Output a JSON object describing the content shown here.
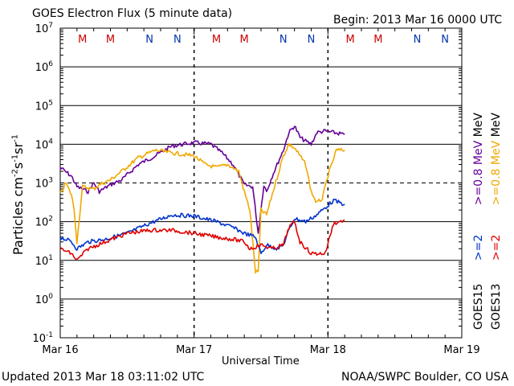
{
  "header": {
    "title": "GOES Electron Flux (5 minute data)",
    "begin": "Begin: 2013 Mar 16 0000 UTC"
  },
  "footer": {
    "updated": "Updated 2013 Mar 18 03:11:02 UTC",
    "credit": "NOAA/SWPC Boulder, CO USA"
  },
  "y_axis": {
    "label_main": "Particles cm",
    "sup1": "-2",
    "seg_s": "s",
    "sup2": "-1",
    "seg_sr": "sr",
    "sup3": "-1"
  },
  "x_axis": {
    "label": "Universal Time"
  },
  "legend": {
    "goes15": {
      "sat": "GOES15",
      "high": ">=0.8 MeV",
      "low": ">=2"
    },
    "goes13": {
      "sat": "GOES13",
      "high": ">=0.8 MeV",
      "low": ">=2"
    },
    "mev": "MeV"
  },
  "colors": {
    "goes15_high": "#660099",
    "goes15_low": "#0033cc",
    "goes13_high": "#f0a800",
    "goes13_low": "#e00000",
    "M_marker": "#cc0000",
    "N_marker": "#0033aa"
  },
  "chart_data": {
    "type": "line",
    "title": "GOES Electron Flux (5 minute data)",
    "xlabel": "Universal Time",
    "ylabel": "Particles cm-2 s-1 sr-1",
    "y_scale": "log",
    "ylim": [
      0.1,
      10000000
    ],
    "xlim": [
      "2013-03-16",
      "2013-03-19"
    ],
    "x_ticks": [
      "Mar 16",
      "Mar 17",
      "Mar 18",
      "Mar 19"
    ],
    "y_ticks": [
      "10^7",
      "10^6",
      "10^5",
      "10^4",
      "10^3",
      "10^2",
      "10^1",
      "10^0",
      "10^-1"
    ],
    "markers": [
      {
        "label": "M",
        "time": "2013-03-16 04:00"
      },
      {
        "label": "M",
        "time": "2013-03-16 09:00"
      },
      {
        "label": "N",
        "time": "2013-03-16 16:00"
      },
      {
        "label": "N",
        "time": "2013-03-16 21:00"
      },
      {
        "label": "M",
        "time": "2013-03-17 04:00"
      },
      {
        "label": "M",
        "time": "2013-03-17 09:00"
      },
      {
        "label": "N",
        "time": "2013-03-17 16:00"
      },
      {
        "label": "N",
        "time": "2013-03-17 21:00"
      },
      {
        "label": "M",
        "time": "2013-03-18 04:00"
      },
      {
        "label": "M",
        "time": "2013-03-18 09:00"
      },
      {
        "label": "N",
        "time": "2013-03-18 16:00"
      },
      {
        "label": "N",
        "time": "2013-03-18 21:00"
      }
    ],
    "series": [
      {
        "name": "GOES15 >=0.8 MeV",
        "color": "#660099",
        "x": [
          "03-16 00:00",
          "03-16 02:00",
          "03-16 03:00",
          "03-16 05:00",
          "03-16 06:00",
          "03-16 07:00",
          "03-16 09:00",
          "03-16 11:00",
          "03-16 14:00",
          "03-16 17:00",
          "03-16 20:00",
          "03-17 00:00",
          "03-17 03:00",
          "03-17 05:00",
          "03-17 07:00",
          "03-17 09:00",
          "03-17 10:30",
          "03-17 11:30",
          "03-17 12:30",
          "03-17 13:00",
          "03-17 14:00",
          "03-17 16:00",
          "03-17 17:00",
          "03-17 18:00",
          "03-17 19:00",
          "03-17 20:00",
          "03-17 21:00",
          "03-17 22:00",
          "03-17 23:30",
          "03-18 01:00",
          "03-18 03:00"
        ],
        "y": [
          2500,
          1500,
          800,
          600,
          1000,
          600,
          900,
          1200,
          3000,
          5000,
          9000,
          11000,
          10000,
          6000,
          3000,
          900,
          800,
          50,
          900,
          600,
          1500,
          7000,
          20000,
          30000,
          15000,
          12000,
          10000,
          20000,
          22000,
          20000,
          18000
        ]
      },
      {
        "name": "GOES13 >=0.8 MeV",
        "color": "#f0a800",
        "x": [
          "03-16 00:00",
          "03-16 01:00",
          "03-16 02:00",
          "03-16 02:30",
          "03-16 03:00",
          "03-16 04:00",
          "03-16 06:00",
          "03-16 07:00",
          "03-16 09:00",
          "03-16 11:00",
          "03-16 14:00",
          "03-16 17:00",
          "03-16 20:00",
          "03-17 00:00",
          "03-17 02:00",
          "03-17 04:00",
          "03-17 06:00",
          "03-17 08:00",
          "03-17 09:00",
          "03-17 10:00",
          "03-17 11:00",
          "03-17 11:30",
          "03-17 12:00",
          "03-17 13:00",
          "03-17 14:00",
          "03-17 16:00",
          "03-17 17:00",
          "03-17 18:00",
          "03-17 19:00",
          "03-17 20:00",
          "03-17 21:00",
          "03-17 22:00",
          "03-17 23:00",
          "03-18 00:00",
          "03-18 01:30",
          "03-18 03:00"
        ],
        "y": [
          500,
          1000,
          500,
          200,
          30,
          800,
          700,
          900,
          1200,
          2000,
          4500,
          7000,
          6000,
          5000,
          3000,
          2500,
          3000,
          2000,
          600,
          200,
          5,
          5,
          200,
          150,
          500,
          5000,
          10000,
          8000,
          5000,
          3000,
          600,
          300,
          400,
          1500,
          7000,
          7000
        ]
      },
      {
        "name": "GOES15 >=2 MeV",
        "color": "#0033cc",
        "x": [
          "03-16 00:00",
          "03-16 02:00",
          "03-16 03:00",
          "03-16 05:00",
          "03-16 08:00",
          "03-16 12:00",
          "03-16 16:00",
          "03-16 20:00",
          "03-17 00:00",
          "03-17 04:00",
          "03-17 07:00",
          "03-17 09:00",
          "03-17 11:00",
          "03-17 12:00",
          "03-17 13:00",
          "03-17 15:00",
          "03-17 16:00",
          "03-17 17:00",
          "03-17 18:00",
          "03-17 20:00",
          "03-17 22:00",
          "03-17 23:00",
          "03-18 01:00",
          "03-18 03:00"
        ],
        "y": [
          40,
          30,
          20,
          30,
          35,
          50,
          90,
          150,
          140,
          100,
          70,
          50,
          40,
          15,
          25,
          20,
          25,
          60,
          120,
          100,
          150,
          200,
          350,
          280
        ]
      },
      {
        "name": "GOES13 >=2 MeV",
        "color": "#e00000",
        "x": [
          "03-16 00:00",
          "03-16 02:00",
          "03-16 03:00",
          "03-16 05:00",
          "03-16 08:00",
          "03-16 12:00",
          "03-16 16:00",
          "03-16 20:00",
          "03-17 00:00",
          "03-17 04:00",
          "03-17 07:00",
          "03-17 09:00",
          "03-17 10:00",
          "03-17 12:00",
          "03-17 14:00",
          "03-17 16:00",
          "03-17 17:00",
          "03-17 18:00",
          "03-17 19:00",
          "03-17 21:00",
          "03-17 22:00",
          "03-17 23:30",
          "03-18 01:00",
          "03-18 03:00"
        ],
        "y": [
          20,
          15,
          10,
          20,
          30,
          50,
          60,
          60,
          50,
          40,
          35,
          30,
          20,
          25,
          20,
          25,
          70,
          100,
          30,
          15,
          15,
          15,
          90,
          110
        ]
      }
    ]
  }
}
